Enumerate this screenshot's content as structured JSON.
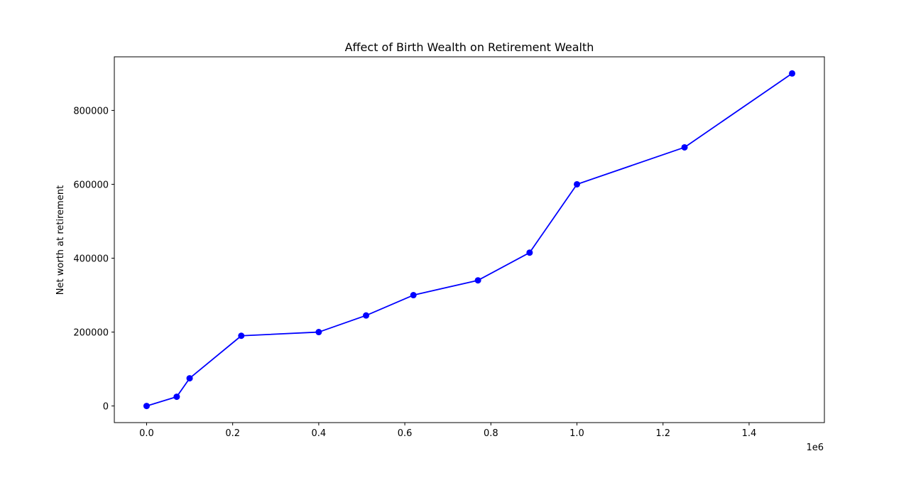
{
  "chart_data": {
    "type": "line",
    "title": "Affect of Birth Wealth on Retirement Wealth",
    "xlabel": "",
    "ylabel": "Net worth at retirement",
    "x_offset_label": "1e6",
    "x_tick_labels": [
      "0.0",
      "0.2",
      "0.4",
      "0.6",
      "0.8",
      "1.0",
      "1.2",
      "1.4"
    ],
    "x_ticks": [
      0,
      200000,
      400000,
      600000,
      800000,
      1000000,
      1200000,
      1400000
    ],
    "y_tick_labels": [
      "0",
      "200000",
      "400000",
      "600000",
      "800000"
    ],
    "y_ticks": [
      0,
      200000,
      400000,
      600000,
      800000
    ],
    "xlim": [
      -75000,
      1575000
    ],
    "ylim": [
      -45000,
      945000
    ],
    "grid": false,
    "series": [
      {
        "color": "#0000ff",
        "marker": "circle",
        "x": [
          0,
          70000,
          100000,
          220000,
          400000,
          510000,
          620000,
          770000,
          890000,
          1000000,
          1250000,
          1500000
        ],
        "y": [
          0,
          25000,
          75000,
          190000,
          200000,
          245000,
          300000,
          340000,
          415000,
          600000,
          700000,
          900000
        ]
      }
    ]
  }
}
